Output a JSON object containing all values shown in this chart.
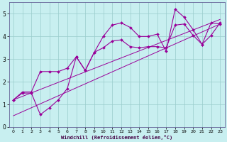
{
  "xlabel": "Windchill (Refroidissement éolien,°C)",
  "bg_color": "#c8eff0",
  "line_color": "#990099",
  "grid_color": "#99cccc",
  "spine_color": "#666699",
  "xlim": [
    -0.5,
    23.5
  ],
  "ylim": [
    0,
    5.5
  ],
  "xticks": [
    0,
    1,
    2,
    3,
    4,
    5,
    6,
    7,
    8,
    9,
    10,
    11,
    12,
    13,
    14,
    15,
    16,
    17,
    18,
    19,
    20,
    21,
    22,
    23
  ],
  "yticks": [
    0,
    1,
    2,
    3,
    4,
    5
  ],
  "line1_x": [
    0,
    1,
    2,
    3,
    4,
    5,
    6,
    7,
    8,
    9,
    10,
    11,
    12,
    13,
    14,
    15,
    16,
    17,
    18,
    19,
    20,
    21,
    22,
    23
  ],
  "line1_y": [
    1.2,
    1.5,
    1.5,
    0.55,
    0.85,
    1.2,
    1.7,
    3.1,
    2.5,
    3.3,
    4.0,
    4.5,
    4.6,
    4.4,
    4.0,
    4.0,
    4.1,
    3.35,
    5.2,
    4.85,
    4.3,
    3.65,
    4.6,
    4.55
  ],
  "line2_x": [
    0,
    1,
    2,
    3,
    4,
    5,
    6,
    7,
    8,
    9,
    10,
    11,
    12,
    13,
    14,
    15,
    16,
    17,
    18,
    19,
    20,
    21,
    22,
    23
  ],
  "line2_y": [
    1.2,
    1.55,
    1.55,
    2.45,
    2.45,
    2.45,
    2.6,
    3.1,
    2.5,
    3.3,
    3.5,
    3.8,
    3.85,
    3.55,
    3.5,
    3.55,
    3.55,
    3.5,
    4.5,
    4.55,
    4.05,
    3.65,
    4.05,
    4.6
  ],
  "line3_x": [
    0,
    23
  ],
  "line3_y": [
    1.2,
    4.75
  ],
  "line4_x": [
    0,
    23
  ],
  "line4_y": [
    0.5,
    4.55
  ]
}
